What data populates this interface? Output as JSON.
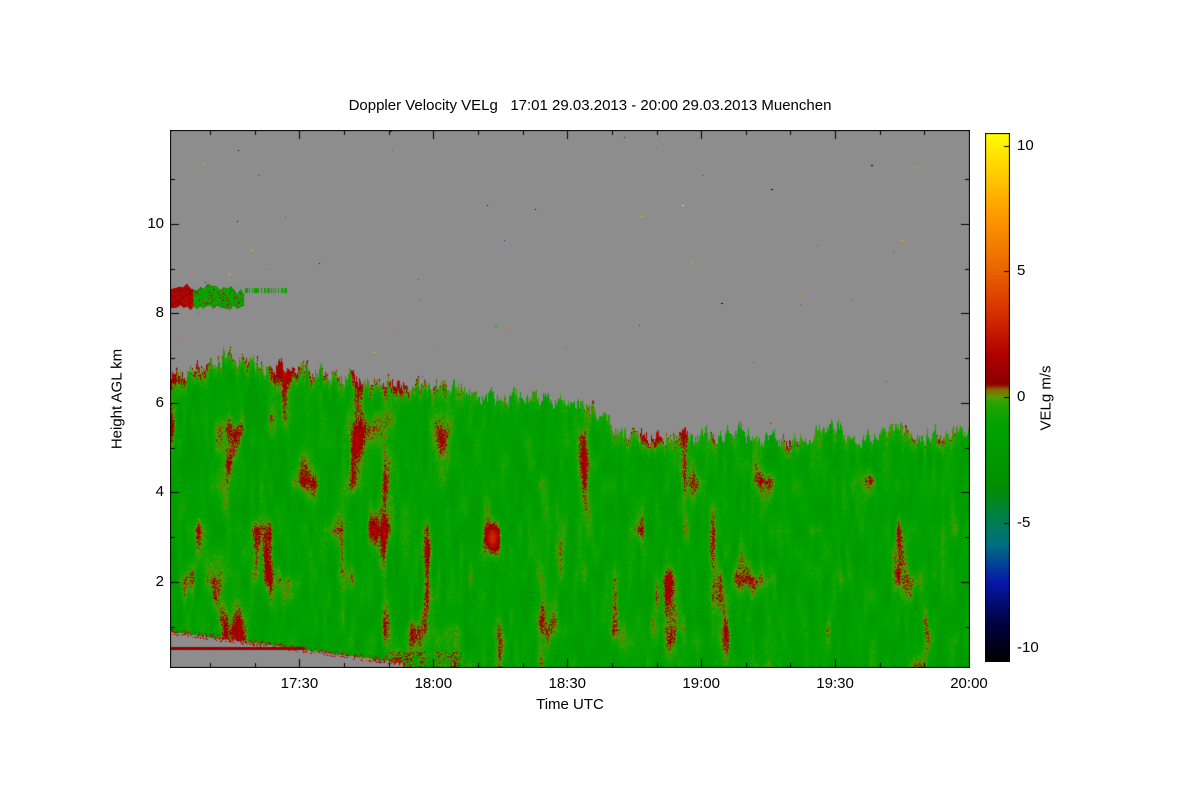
{
  "page": {
    "background": "#ffffff"
  },
  "chart_data": {
    "type": "heatmap",
    "title": "Doppler Velocity VELg   17:01 29.03.2013 - 20:00 29.03.2013 Muenchen",
    "xlabel": "Time UTC",
    "ylabel": "Height AGL km",
    "station": "Muenchen",
    "time_start_utc": "17:01 29.03.2013",
    "time_end_utc": "20:00 29.03.2013",
    "x_axis": {
      "start_minute": 0,
      "end_minute": 179,
      "major_ticks": [
        {
          "minute": 29,
          "label": "17:30"
        },
        {
          "minute": 59,
          "label": "18:00"
        },
        {
          "minute": 89,
          "label": "18:30"
        },
        {
          "minute": 119,
          "label": "19:00"
        },
        {
          "minute": 149,
          "label": "19:30"
        },
        {
          "minute": 179,
          "label": "20:00"
        }
      ],
      "minor_tick_minutes": [
        9,
        19,
        39,
        49,
        69,
        79,
        99,
        109,
        129,
        139,
        159,
        169
      ]
    },
    "y_axis": {
      "min_km": 0.1,
      "max_km": 12.1,
      "major_ticks": [
        2,
        4,
        6,
        8,
        10
      ],
      "minor_ticks": [
        1,
        3,
        5,
        7,
        9,
        11
      ]
    },
    "colorbar": {
      "label": "VELg m/s",
      "min": -10.5,
      "max": 10.5,
      "ticks": [
        {
          "value": 10,
          "label": "10"
        },
        {
          "value": 5,
          "label": "5"
        },
        {
          "value": 0,
          "label": "0"
        },
        {
          "value": -5,
          "label": "-5"
        },
        {
          "value": -10,
          "label": "-10"
        }
      ]
    },
    "colormap_stops": [
      [
        0.0,
        "#000000"
      ],
      [
        0.07,
        "#00023f"
      ],
      [
        0.15,
        "#0718a8"
      ],
      [
        0.22,
        "#006f85"
      ],
      [
        0.263,
        "#007d55"
      ],
      [
        0.33,
        "#008f00"
      ],
      [
        0.45,
        "#00a400"
      ],
      [
        0.49,
        "#2aa300"
      ],
      [
        0.5,
        "#55a000"
      ],
      [
        0.515,
        "#8c6400"
      ],
      [
        0.525,
        "#8b0000"
      ],
      [
        0.58,
        "#b00000"
      ],
      [
        0.65,
        "#d42a00"
      ],
      [
        0.75,
        "#ee6a00"
      ],
      [
        0.85,
        "#ff9d00"
      ],
      [
        1.0,
        "#ffff00"
      ]
    ],
    "no_data_color": "#8d8d8d",
    "axis_color": "#000000",
    "echo_top_profile_km": [
      [
        0,
        6.55
      ],
      [
        4,
        6.7
      ],
      [
        8,
        6.75
      ],
      [
        12,
        7.1
      ],
      [
        14,
        7.15
      ],
      [
        17,
        6.95
      ],
      [
        22,
        6.85
      ],
      [
        29,
        6.75
      ],
      [
        38,
        6.62
      ],
      [
        47,
        6.52
      ],
      [
        56,
        6.42
      ],
      [
        65,
        6.3
      ],
      [
        74,
        6.1
      ],
      [
        80,
        6.18
      ],
      [
        87,
        6.05
      ],
      [
        93,
        5.95
      ],
      [
        97,
        5.75
      ],
      [
        100,
        5.35
      ],
      [
        105,
        5.25
      ],
      [
        112,
        5.3
      ],
      [
        119,
        5.25
      ],
      [
        127,
        5.4
      ],
      [
        133,
        5.25
      ],
      [
        140,
        5.2
      ],
      [
        148,
        5.5
      ],
      [
        152,
        5.35
      ],
      [
        157,
        5.2
      ],
      [
        163,
        5.45
      ],
      [
        168,
        5.3
      ],
      [
        173,
        5.35
      ],
      [
        179,
        5.25
      ]
    ],
    "mean_doppler_velocity_ms": -1.5,
    "velocity_texture_ms": 1.0,
    "features": {
      "elevated_cloud": {
        "t_min": [
          0,
          16.5
        ],
        "height_km": [
          8.15,
          8.6
        ],
        "left_edge_velocity_ms": 1.5,
        "extension_t_min": [
          16.5,
          26
        ],
        "extension_height_km": 8.52
      },
      "updraft_spot": {
        "t_min": 72,
        "height_km": 2.9,
        "velocity_ms": 3.2
      },
      "nodata_wedge": {
        "t_min": [
          0,
          52
        ],
        "top_km_start": 0.9,
        "top_km_end": 0.2
      },
      "surface_line": {
        "t_min": [
          0,
          30
        ],
        "height_km": 0.53,
        "velocity_ms": 0.9
      },
      "noise_speckles": 80
    },
    "render_seed": 11
  }
}
